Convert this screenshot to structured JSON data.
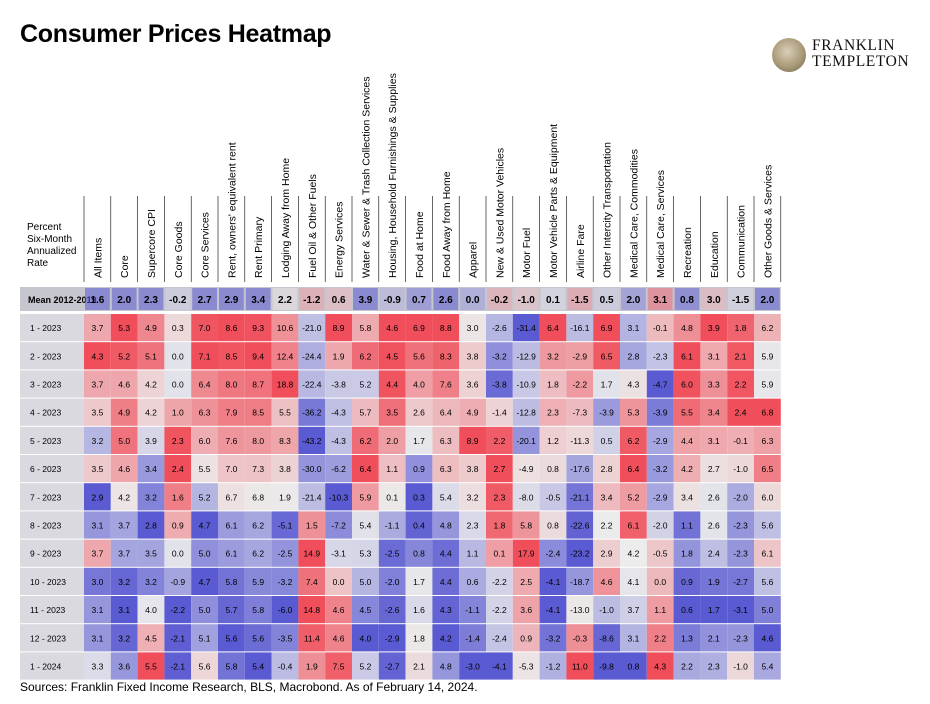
{
  "title": "Consumer Prices Heatmap",
  "logo": {
    "line1": "FRANKLIN",
    "line2": "TEMPLETON"
  },
  "ylabel": [
    "Percent",
    "Six-Month",
    "Annualized",
    "Rate"
  ],
  "footer": "Sources: Franklin Fixed Income Research, BLS, Macrobond. As of February 14, 2024.",
  "chart_data": {
    "type": "heatmap",
    "columns": [
      "All Items",
      "Core",
      "Supercore CPI",
      "Core Goods",
      "Core Services",
      "Rent, owners' equivalent rent",
      "Rent Primary",
      "Lodging Away from Home",
      "Fuel Oil & Other Fuels",
      "Energy Services",
      "Water & Sewer & Trash Collection Services",
      "Housing, Household Furnishings & Supplies",
      "Food at Home",
      "Food Away from Home",
      "Apparel",
      "New & Used Motor Vehicles",
      "Motor Fuel",
      "Motor Vehicle Parts & Equipment",
      "Airline Fare",
      "Other Intercity Transportation",
      "Medical Care, Commodities",
      "Medical Care, Services",
      "Recreation",
      "Education",
      "Communication",
      "Other Goods & Services"
    ],
    "mean_label": "Mean 2012-2019",
    "mean_values": [
      1.6,
      2.0,
      2.3,
      -0.2,
      2.7,
      2.9,
      3.4,
      2.2,
      -1.2,
      0.6,
      3.9,
      -0.9,
      0.7,
      2.6,
      0.0,
      -0.2,
      -1.0,
      0.1,
      -1.5,
      0.5,
      2.0,
      3.1,
      0.8,
      3.0,
      -1.5,
      2.0
    ],
    "rows": [
      {
        "label": "1 - 2023",
        "values": [
          3.7,
          5.3,
          4.9,
          0.3,
          7.0,
          8.6,
          9.3,
          10.6,
          -21.0,
          8.9,
          5.8,
          4.6,
          6.9,
          8.8,
          3.0,
          -2.6,
          -31.4,
          6.4,
          -16.1,
          6.9,
          3.1,
          -0.1,
          4.8,
          3.9,
          1.8,
          6.2
        ]
      },
      {
        "label": "2 - 2023",
        "values": [
          4.3,
          5.2,
          5.1,
          0.0,
          7.1,
          8.5,
          9.4,
          12.4,
          -24.4,
          1.9,
          6.2,
          4.5,
          5.6,
          8.3,
          3.8,
          -3.2,
          -12.9,
          3.2,
          -2.9,
          6.5,
          2.8,
          -2.3,
          6.1,
          3.1,
          2.1,
          5.9
        ]
      },
      {
        "label": "3 - 2023",
        "values": [
          3.7,
          4.6,
          4.2,
          0.0,
          6.4,
          8.0,
          8.7,
          18.8,
          -22.4,
          -3.8,
          5.2,
          4.4,
          4.0,
          7.6,
          3.6,
          -3.8,
          -10.9,
          1.8,
          -2.2,
          1.7,
          4.3,
          -4.7,
          6.0,
          3.3,
          2.2,
          5.9
        ]
      },
      {
        "label": "4 - 2023",
        "values": [
          3.5,
          4.9,
          4.2,
          1.0,
          6.3,
          7.9,
          8.5,
          5.5,
          -36.2,
          -4.3,
          5.7,
          3.5,
          2.6,
          6.4,
          4.9,
          -1.4,
          -12.8,
          2.3,
          -7.3,
          -3.9,
          5.3,
          -3.9,
          5.5,
          3.4,
          2.4,
          6.8
        ]
      },
      {
        "label": "5 - 2023",
        "values": [
          3.2,
          5.0,
          3.9,
          2.3,
          6.0,
          7.6,
          8.0,
          8.3,
          -43.2,
          -4.3,
          6.2,
          2.0,
          1.7,
          6.3,
          8.9,
          2.2,
          -20.1,
          1.2,
          -11.3,
          0.5,
          6.2,
          -2.9,
          4.4,
          3.1,
          -0.1,
          6.3
        ]
      },
      {
        "label": "6 - 2023",
        "values": [
          3.5,
          4.6,
          3.4,
          2.4,
          5.5,
          7.0,
          7.3,
          3.8,
          -30.0,
          -6.2,
          6.4,
          1.1,
          0.9,
          6.3,
          3.8,
          2.7,
          -4.9,
          0.8,
          -17.6,
          2.8,
          6.4,
          -3.2,
          4.2,
          2.7,
          -1.0,
          6.5
        ]
      },
      {
        "label": "7 - 2023",
        "values": [
          2.9,
          4.2,
          3.2,
          1.6,
          5.2,
          6.7,
          6.8,
          1.9,
          -21.4,
          -10.3,
          5.9,
          0.1,
          0.3,
          5.4,
          3.2,
          2.3,
          -8.0,
          -0.5,
          -21.1,
          3.4,
          5.2,
          -2.9,
          3.4,
          2.6,
          -2.0,
          6.0
        ]
      },
      {
        "label": "8 - 2023",
        "values": [
          3.1,
          3.7,
          2.8,
          0.9,
          4.7,
          6.1,
          6.2,
          -5.1,
          1.5,
          -7.2,
          5.4,
          -1.1,
          0.4,
          4.8,
          2.3,
          1.8,
          5.8,
          0.8,
          -22.6,
          2.2,
          6.1,
          -2.0,
          1.1,
          2.6,
          -2.3,
          5.6
        ]
      },
      {
        "label": "9 - 2023",
        "values": [
          3.7,
          3.7,
          3.5,
          0.0,
          5.0,
          6.1,
          6.2,
          -2.5,
          14.9,
          -3.1,
          5.3,
          -2.5,
          0.8,
          4.4,
          1.1,
          0.1,
          17.9,
          -2.4,
          -23.2,
          2.9,
          4.2,
          -0.5,
          1.8,
          2.4,
          -2.3,
          6.1
        ]
      },
      {
        "label": "10 - 2023",
        "values": [
          3.0,
          3.2,
          3.2,
          -0.9,
          4.7,
          5.8,
          5.9,
          -3.2,
          7.4,
          0.0,
          5.0,
          -2.0,
          1.7,
          4.4,
          0.6,
          -2.2,
          2.5,
          -4.1,
          -18.7,
          4.6,
          4.1,
          0.0,
          0.9,
          1.9,
          -2.7,
          5.6
        ]
      },
      {
        "label": "11 - 2023",
        "values": [
          3.1,
          3.1,
          4.0,
          -2.2,
          5.0,
          5.7,
          5.8,
          -6.0,
          14.8,
          4.6,
          4.5,
          -2.6,
          1.6,
          4.3,
          -1.1,
          -2.2,
          3.6,
          -4.1,
          -13.0,
          -1.0,
          3.7,
          1.1,
          0.6,
          1.7,
          -3.1,
          5.0
        ]
      },
      {
        "label": "12 - 2023",
        "values": [
          3.1,
          3.2,
          4.5,
          -2.1,
          5.1,
          5.6,
          5.6,
          -3.5,
          11.4,
          4.6,
          4.0,
          -2.9,
          1.8,
          4.2,
          -1.4,
          -2.4,
          0.9,
          -3.2,
          -0.3,
          -8.6,
          3.1,
          2.2,
          1.3,
          2.1,
          -2.3,
          4.6
        ]
      },
      {
        "label": "1 - 2024",
        "values": [
          3.3,
          3.6,
          5.5,
          -2.1,
          5.6,
          5.8,
          5.4,
          -0.4,
          1.9,
          7.5,
          5.2,
          -2.7,
          2.1,
          4.8,
          -3.0,
          -4.1,
          -5.3,
          -1.2,
          11.0,
          -9.8,
          0.8,
          4.3,
          2.2,
          2.3,
          -1.0,
          5.4
        ]
      }
    ],
    "colors": {
      "low": "#5a5ad2",
      "mid": "#ececec",
      "high": "#f04e5a",
      "mean_row": "#c6c6cf"
    },
    "color_scale": "per-column, diverging around column median"
  }
}
